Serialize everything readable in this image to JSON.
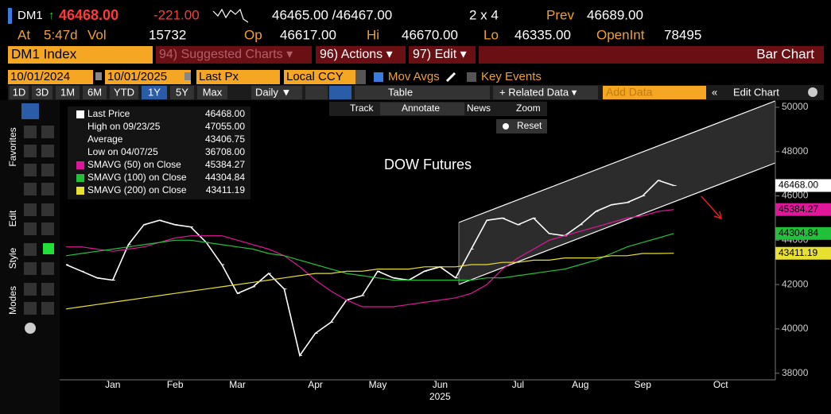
{
  "header": {
    "ticker": "DM1",
    "arrow": "↑",
    "last": "46468.00",
    "change": "-221.00",
    "bid_ask": "46465.00 /46467.00",
    "size": "2 x 4",
    "prev_label": "Prev",
    "prev": "46689.00",
    "at_label": "At",
    "at": "5:47d",
    "vol_label": "Vol",
    "vol": "15732",
    "op_label": "Op",
    "op": "46617.00",
    "hi_label": "Hi",
    "hi": "46670.00",
    "lo_label": "Lo",
    "lo": "46335.00",
    "oi_label": "OpenInt",
    "oi": "78495"
  },
  "menu": {
    "security": "DM1 Index",
    "suggested": "94) Suggested Charts ▾",
    "actions": "96) Actions ▾",
    "edit": "97) Edit ▾",
    "chart_type": "Bar Chart"
  },
  "settings": {
    "start": "10/01/2024",
    "end": "10/01/2025",
    "field": "Last Px",
    "currency": "Local CCY",
    "mov_avgs": "Mov Avgs",
    "key_events": "Key Events"
  },
  "toolbar": {
    "periods": [
      "1D",
      "3D",
      "1M",
      "6M",
      "YTD",
      "1Y",
      "5Y",
      "Max"
    ],
    "active": "1Y",
    "frequency": "Daily ▼",
    "table": "Table",
    "related": "+ Related Data ▾",
    "add_data": "Add Data",
    "edit_chart": "Edit Chart"
  },
  "chart_tools": {
    "track": "Track",
    "annotate": "Annotate",
    "news": "News",
    "zoom": "Zoom",
    "reset": "Reset"
  },
  "side_tabs": [
    "Favorites",
    "Edit",
    "Style",
    "Modes"
  ],
  "legend": [
    [
      "Last Price",
      "46468.00"
    ],
    [
      "High on 09/23/25",
      "47055.00"
    ],
    [
      "Average",
      "43406.75"
    ],
    [
      "Low on 04/07/25",
      "36708.00"
    ],
    [
      "SMAVG (50)  on Close",
      "45384.27"
    ],
    [
      "SMAVG (100)  on Close",
      "44304.84"
    ],
    [
      "SMAVG (200)  on Close",
      "43411.19"
    ]
  ],
  "chart_data": {
    "type": "line",
    "annotation": "DOW Futures",
    "year_label": "2025",
    "categories": [
      null,
      null,
      null,
      "Jan",
      null,
      null,
      null,
      "Feb",
      null,
      null,
      null,
      "Mar",
      null,
      null,
      null,
      null,
      "Apr",
      null,
      null,
      null,
      "May",
      null,
      null,
      null,
      "Jun",
      null,
      null,
      null,
      null,
      "Jul",
      null,
      null,
      null,
      "Aug",
      null,
      null,
      null,
      "Sep",
      null,
      null,
      null,
      null,
      "Oct",
      null,
      null,
      null
    ],
    "ylim": [
      37700,
      50250
    ],
    "yticks": [
      38000,
      40000,
      42000,
      44000,
      46000,
      48000,
      50000
    ],
    "series": [
      {
        "name": "Last Price",
        "color": "#ffffff",
        "last_label": "46468.00",
        "values": [
          42900,
          42600,
          42300,
          42200,
          43800,
          44700,
          44900,
          44700,
          44600,
          43900,
          42900,
          41600,
          41900,
          42500,
          41800,
          38800,
          39800,
          40300,
          41300,
          41500,
          42600,
          42300,
          42200,
          42600,
          42800,
          42300,
          43600,
          44900,
          45000,
          44700,
          45000,
          44300,
          44200,
          44700,
          45300,
          45600,
          45700,
          46000,
          46700,
          46468,
          null,
          null,
          null,
          null,
          null,
          null
        ]
      },
      {
        "name": "SMAVG (50)",
        "color": "#e0179a",
        "last_label": "45384.27",
        "values": [
          43700,
          43700,
          43600,
          43500,
          43600,
          43700,
          43900,
          44100,
          44200,
          44200,
          44200,
          44000,
          43800,
          43600,
          43300,
          42800,
          42200,
          41700,
          41300,
          41000,
          41000,
          41000,
          41100,
          41200,
          41300,
          41400,
          41600,
          42000,
          42700,
          43200,
          43600,
          44000,
          44200,
          44400,
          44600,
          44800,
          45000,
          45100,
          45300,
          45384,
          null,
          null,
          null,
          null,
          null,
          null
        ]
      },
      {
        "name": "SMAVG (100)",
        "color": "#22c03a",
        "last_label": "44304.84",
        "values": [
          43300,
          43400,
          43500,
          43600,
          43700,
          43800,
          43900,
          44000,
          44000,
          43900,
          43800,
          43700,
          43600,
          43400,
          43300,
          43100,
          42900,
          42700,
          42500,
          42400,
          42300,
          42200,
          42200,
          42200,
          42200,
          42200,
          42200,
          42300,
          42300,
          42400,
          42500,
          42600,
          42700,
          42900,
          43100,
          43400,
          43700,
          43900,
          44100,
          44305,
          null,
          null,
          null,
          null,
          null,
          null
        ]
      },
      {
        "name": "SMAVG (200)",
        "color": "#e8e030",
        "last_label": "43411.19",
        "values": [
          40900,
          41000,
          41100,
          41200,
          41300,
          41400,
          41500,
          41600,
          41700,
          41800,
          41900,
          42000,
          42100,
          42200,
          42300,
          42400,
          42500,
          42500,
          42600,
          42600,
          42700,
          42700,
          42700,
          42800,
          42800,
          42800,
          42900,
          42900,
          43000,
          43000,
          43100,
          43100,
          43200,
          43200,
          43200,
          43300,
          43300,
          43400,
          43400,
          43411,
          null,
          null,
          null,
          null,
          null,
          null
        ]
      }
    ]
  }
}
